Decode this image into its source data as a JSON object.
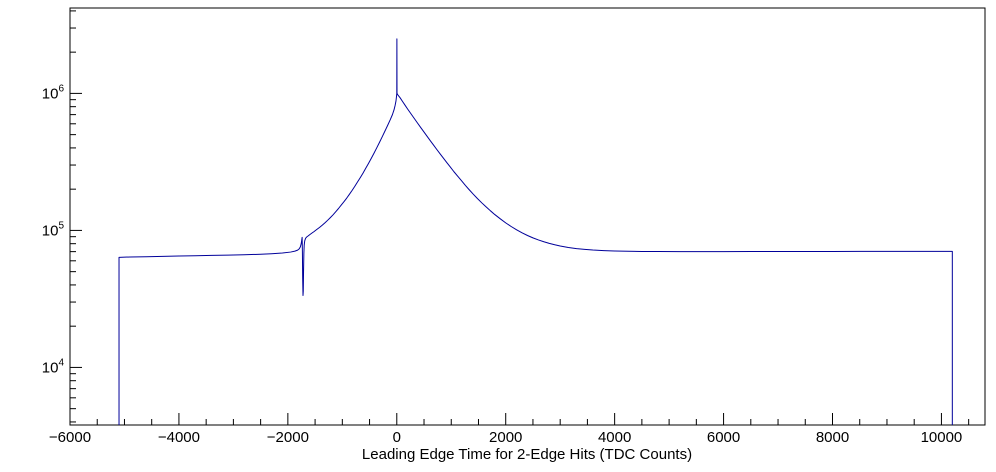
{
  "chart_data": {
    "type": "line",
    "title": "",
    "xlabel": "Leading Edge Time for 2-Edge Hits (TDC Counts)",
    "ylabel": "",
    "x_range": [
      -6000,
      10800
    ],
    "y_range": [
      3800,
      4200000
    ],
    "y_scale": "log",
    "grid": false,
    "legend": false,
    "x_major_ticks": [
      -6000,
      -4000,
      -2000,
      0,
      2000,
      4000,
      6000,
      8000,
      10000
    ],
    "x_tick_labels": [
      "−6000",
      "−4000",
      "−2000",
      "0",
      "2000",
      "4000",
      "6000",
      "8000",
      "10000"
    ],
    "x_minor_step": 500,
    "y_tick_exponents": [
      4,
      5,
      6
    ],
    "y_tick_base": "10",
    "line_color": "#00009a",
    "axis_color": "#000000",
    "background": "#ffffff",
    "series": [
      {
        "name": "leading_edge_time_hist",
        "points": [
          [
            -5100,
            3800
          ],
          [
            -5100,
            63500
          ],
          [
            -4900,
            64000
          ],
          [
            -4600,
            64300
          ],
          [
            -4300,
            64700
          ],
          [
            -4000,
            65000
          ],
          [
            -3700,
            65300
          ],
          [
            -3400,
            65700
          ],
          [
            -3100,
            66000
          ],
          [
            -2800,
            66400
          ],
          [
            -2500,
            67000
          ],
          [
            -2300,
            67600
          ],
          [
            -2100,
            68400
          ],
          [
            -1950,
            69500
          ],
          [
            -1870,
            70600
          ],
          [
            -1820,
            71800
          ],
          [
            -1790,
            73500
          ],
          [
            -1770,
            76000
          ],
          [
            -1755,
            80000
          ],
          [
            -1745,
            85000
          ],
          [
            -1738,
            89000
          ],
          [
            -1733,
            70000
          ],
          [
            -1728,
            45000
          ],
          [
            -1722,
            33500
          ],
          [
            -1717,
            36000
          ],
          [
            -1712,
            50000
          ],
          [
            -1706,
            68000
          ],
          [
            -1700,
            78000
          ],
          [
            -1690,
            84000
          ],
          [
            -1675,
            87500
          ],
          [
            -1655,
            89500
          ],
          [
            -1630,
            91000
          ],
          [
            -1600,
            93000
          ],
          [
            -1560,
            95500
          ],
          [
            -1520,
            98000
          ],
          [
            -1470,
            101500
          ],
          [
            -1420,
            105000
          ],
          [
            -1370,
            109000
          ],
          [
            -1320,
            113500
          ],
          [
            -1270,
            118500
          ],
          [
            -1220,
            124000
          ],
          [
            -1170,
            130000
          ],
          [
            -1120,
            137000
          ],
          [
            -1070,
            144500
          ],
          [
            -1020,
            153000
          ],
          [
            -970,
            162000
          ],
          [
            -920,
            172000
          ],
          [
            -870,
            183500
          ],
          [
            -820,
            196000
          ],
          [
            -770,
            210000
          ],
          [
            -720,
            226000
          ],
          [
            -670,
            243000
          ],
          [
            -620,
            262000
          ],
          [
            -570,
            284000
          ],
          [
            -520,
            308000
          ],
          [
            -470,
            335000
          ],
          [
            -420,
            365000
          ],
          [
            -370,
            399000
          ],
          [
            -320,
            437000
          ],
          [
            -270,
            480000
          ],
          [
            -220,
            528000
          ],
          [
            -170,
            582000
          ],
          [
            -120,
            643000
          ],
          [
            -80,
            700000
          ],
          [
            -50,
            760000
          ],
          [
            -30,
            820000
          ],
          [
            -15,
            880000
          ],
          [
            -5,
            950000
          ],
          [
            0,
            1000000
          ],
          [
            2,
            2500000
          ],
          [
            4,
            1000000
          ],
          [
            20,
            975000
          ],
          [
            60,
            930000
          ],
          [
            100,
            880000
          ],
          [
            150,
            822000
          ],
          [
            200,
            768000
          ],
          [
            260,
            710000
          ],
          [
            320,
            657000
          ],
          [
            380,
            608000
          ],
          [
            440,
            563000
          ],
          [
            500,
            522000
          ],
          [
            560,
            484000
          ],
          [
            620,
            449000
          ],
          [
            680,
            417000
          ],
          [
            740,
            387000
          ],
          [
            800,
            360000
          ],
          [
            860,
            335000
          ],
          [
            920,
            312000
          ],
          [
            980,
            291000
          ],
          [
            1050,
            268000
          ],
          [
            1120,
            248000
          ],
          [
            1190,
            230000
          ],
          [
            1260,
            213000
          ],
          [
            1330,
            198000
          ],
          [
            1400,
            184500
          ],
          [
            1480,
            171000
          ],
          [
            1560,
            159000
          ],
          [
            1640,
            148500
          ],
          [
            1720,
            139000
          ],
          [
            1800,
            130500
          ],
          [
            1900,
            121500
          ],
          [
            2000,
            113500
          ],
          [
            2100,
            106800
          ],
          [
            2200,
            101000
          ],
          [
            2300,
            96000
          ],
          [
            2400,
            91800
          ],
          [
            2500,
            88200
          ],
          [
            2600,
            85200
          ],
          [
            2700,
            82600
          ],
          [
            2800,
            80400
          ],
          [
            2900,
            78600
          ],
          [
            3000,
            77000
          ],
          [
            3150,
            75100
          ],
          [
            3300,
            73700
          ],
          [
            3450,
            72700
          ],
          [
            3600,
            71900
          ],
          [
            3800,
            71200
          ],
          [
            4000,
            70700
          ],
          [
            4250,
            70400
          ],
          [
            4500,
            70200
          ],
          [
            4800,
            70100
          ],
          [
            5200,
            70000
          ],
          [
            5600,
            70000
          ],
          [
            6000,
            70000
          ],
          [
            6500,
            70100
          ],
          [
            7000,
            70100
          ],
          [
            7500,
            70200
          ],
          [
            8000,
            70200
          ],
          [
            8500,
            70300
          ],
          [
            9000,
            70300
          ],
          [
            9500,
            70300
          ],
          [
            10000,
            70300
          ],
          [
            10200,
            70300
          ],
          [
            10200,
            3800
          ]
        ]
      }
    ]
  }
}
